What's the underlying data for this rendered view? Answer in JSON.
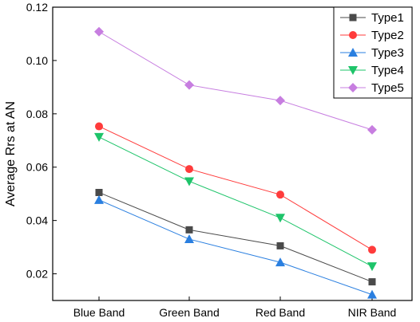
{
  "chart_data": {
    "type": "line",
    "categories": [
      "Blue Band",
      "Green Band",
      "Red Band",
      "NIR Band"
    ],
    "ylabel": "Average Rrs at AN",
    "xlabel": "",
    "ylim": [
      0.01,
      0.12
    ],
    "yticks": [
      0.02,
      0.04,
      0.06,
      0.08,
      0.1,
      0.12
    ],
    "ytick_labels": [
      "0.02",
      "0.04",
      "0.06",
      "0.08",
      "0.10",
      "0.12"
    ],
    "grid": false,
    "legend_position": "top-right",
    "series": [
      {
        "name": "Type1",
        "values": [
          0.0505,
          0.0365,
          0.0305,
          0.017
        ],
        "color": "#4a4a4a",
        "marker": "square"
      },
      {
        "name": "Type2",
        "values": [
          0.0753,
          0.0593,
          0.0497,
          0.029
        ],
        "color": "#ff3b3b",
        "marker": "circle"
      },
      {
        "name": "Type3",
        "values": [
          0.0477,
          0.033,
          0.0243,
          0.0122
        ],
        "color": "#2a7fe0",
        "marker": "triangle-up"
      },
      {
        "name": "Type4",
        "values": [
          0.0713,
          0.0547,
          0.041,
          0.0228
        ],
        "color": "#1ec46a",
        "marker": "triangle-down"
      },
      {
        "name": "Type5",
        "values": [
          0.1108,
          0.0908,
          0.085,
          0.074
        ],
        "color": "#c77ee0",
        "marker": "diamond"
      }
    ]
  }
}
